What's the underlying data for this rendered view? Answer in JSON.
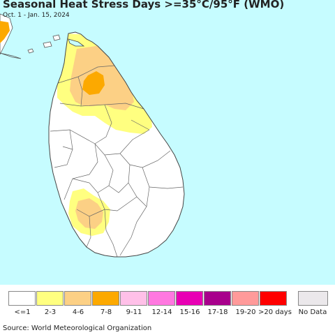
{
  "header": {
    "title": "Seasonal Heat Stress Days >=35°C/95°F (WMO)",
    "period": "Oct. 1 - Jan. 15, 2024"
  },
  "map": {
    "region": "Sri Lanka",
    "colors": {
      "ocean": "#c6fcff",
      "land": "#ffffff",
      "border": "#555555"
    }
  },
  "legend": {
    "bins": [
      {
        "label": "<=1",
        "color": "#ffffff"
      },
      {
        "label": "2-3",
        "color": "#ffff80"
      },
      {
        "label": "4-6",
        "color": "#fcd085"
      },
      {
        "label": "7-8",
        "color": "#fca900"
      },
      {
        "label": "9-11",
        "color": "#ffc0e8"
      },
      {
        "label": "12-14",
        "color": "#ff78e0"
      },
      {
        "label": "15-16",
        "color": "#e800b4"
      },
      {
        "label": "17-18",
        "color": "#a8008c"
      },
      {
        "label": "19-20",
        "color": "#ff9a9a"
      },
      {
        "label": ">20 days",
        "color": "#ff0000"
      }
    ],
    "no_data": {
      "label": "No Data",
      "color": "#ebe8eb"
    }
  },
  "footer": {
    "source": "Source: World Meteorological Organization"
  }
}
